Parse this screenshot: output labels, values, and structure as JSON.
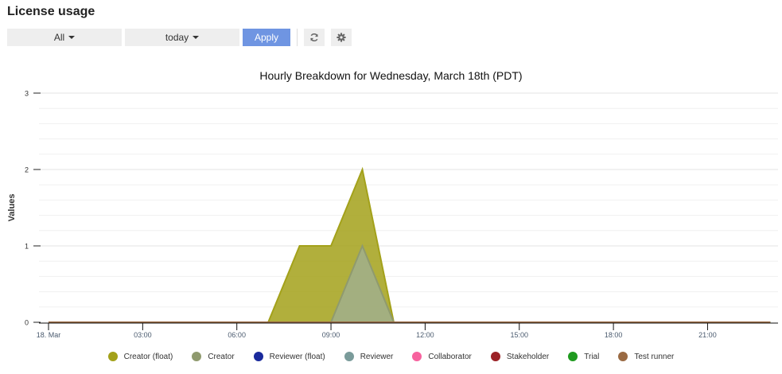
{
  "header": {
    "title": "License usage"
  },
  "toolbar": {
    "scope_select": "All",
    "range_select": "today",
    "apply_label": "Apply",
    "refresh_icon": "refresh-icon",
    "settings_icon": "gear-icon"
  },
  "colors": {
    "apply_button": "#6f95e2",
    "button_bg": "#eeeeee"
  },
  "chart_data": {
    "type": "area",
    "title": "Hourly Breakdown for Wednesday, March 18th (PDT)",
    "xlabel": "",
    "ylabel": "Values",
    "ylim": [
      0,
      3
    ],
    "yticks": [
      "0",
      "1",
      "2",
      "3"
    ],
    "xticks": [
      "18. Mar",
      "03:00",
      "06:00",
      "09:00",
      "12:00",
      "15:00",
      "18:00",
      "21:00"
    ],
    "grid": true,
    "legend_position": "bottom",
    "x": [
      "00:00",
      "01:00",
      "02:00",
      "03:00",
      "04:00",
      "05:00",
      "06:00",
      "07:00",
      "08:00",
      "09:00",
      "10:00",
      "11:00",
      "12:00",
      "13:00",
      "14:00",
      "15:00",
      "16:00",
      "17:00",
      "18:00",
      "19:00",
      "20:00",
      "21:00",
      "22:00",
      "23:00"
    ],
    "series": [
      {
        "name": "Creator (float)",
        "color": "#a3a11a",
        "values": [
          0,
          0,
          0,
          0,
          0,
          0,
          0,
          0,
          1,
          1,
          2,
          0,
          0,
          0,
          0,
          0,
          0,
          0,
          0,
          0,
          0,
          0,
          0,
          0
        ]
      },
      {
        "name": "Creator",
        "color": "#8f9a6e",
        "values": [
          0,
          0,
          0,
          0,
          0,
          0,
          0,
          0,
          0,
          0,
          1,
          0,
          0,
          0,
          0,
          0,
          0,
          0,
          0,
          0,
          0,
          0,
          0,
          0
        ]
      },
      {
        "name": "Reviewer (float)",
        "color": "#1a2a9c",
        "values": [
          0,
          0,
          0,
          0,
          0,
          0,
          0,
          0,
          0,
          0,
          0,
          0,
          0,
          0,
          0,
          0,
          0,
          0,
          0,
          0,
          0,
          0,
          0,
          0
        ]
      },
      {
        "name": "Reviewer",
        "color": "#7a9b9a",
        "values": [
          0,
          0,
          0,
          0,
          0,
          0,
          0,
          0,
          0,
          0,
          0,
          0,
          0,
          0,
          0,
          0,
          0,
          0,
          0,
          0,
          0,
          0,
          0,
          0
        ]
      },
      {
        "name": "Collaborator",
        "color": "#f7629e",
        "values": [
          0,
          0,
          0,
          0,
          0,
          0,
          0,
          0,
          0,
          0,
          0,
          0,
          0,
          0,
          0,
          0,
          0,
          0,
          0,
          0,
          0,
          0,
          0,
          0
        ]
      },
      {
        "name": "Stakeholder",
        "color": "#9b2226",
        "values": [
          0,
          0,
          0,
          0,
          0,
          0,
          0,
          0,
          0,
          0,
          0,
          0,
          0,
          0,
          0,
          0,
          0,
          0,
          0,
          0,
          0,
          0,
          0,
          0
        ]
      },
      {
        "name": "Trial",
        "color": "#1f9a1f",
        "values": [
          0,
          0,
          0,
          0,
          0,
          0,
          0,
          0,
          0,
          0,
          0,
          0,
          0,
          0,
          0,
          0,
          0,
          0,
          0,
          0,
          0,
          0,
          0,
          0
        ]
      },
      {
        "name": "Test runner",
        "color": "#9a6a43",
        "values": [
          0,
          0,
          0,
          0,
          0,
          0,
          0,
          0,
          0,
          0,
          0,
          0,
          0,
          0,
          0,
          0,
          0,
          0,
          0,
          0,
          0,
          0,
          0,
          0
        ]
      }
    ]
  }
}
